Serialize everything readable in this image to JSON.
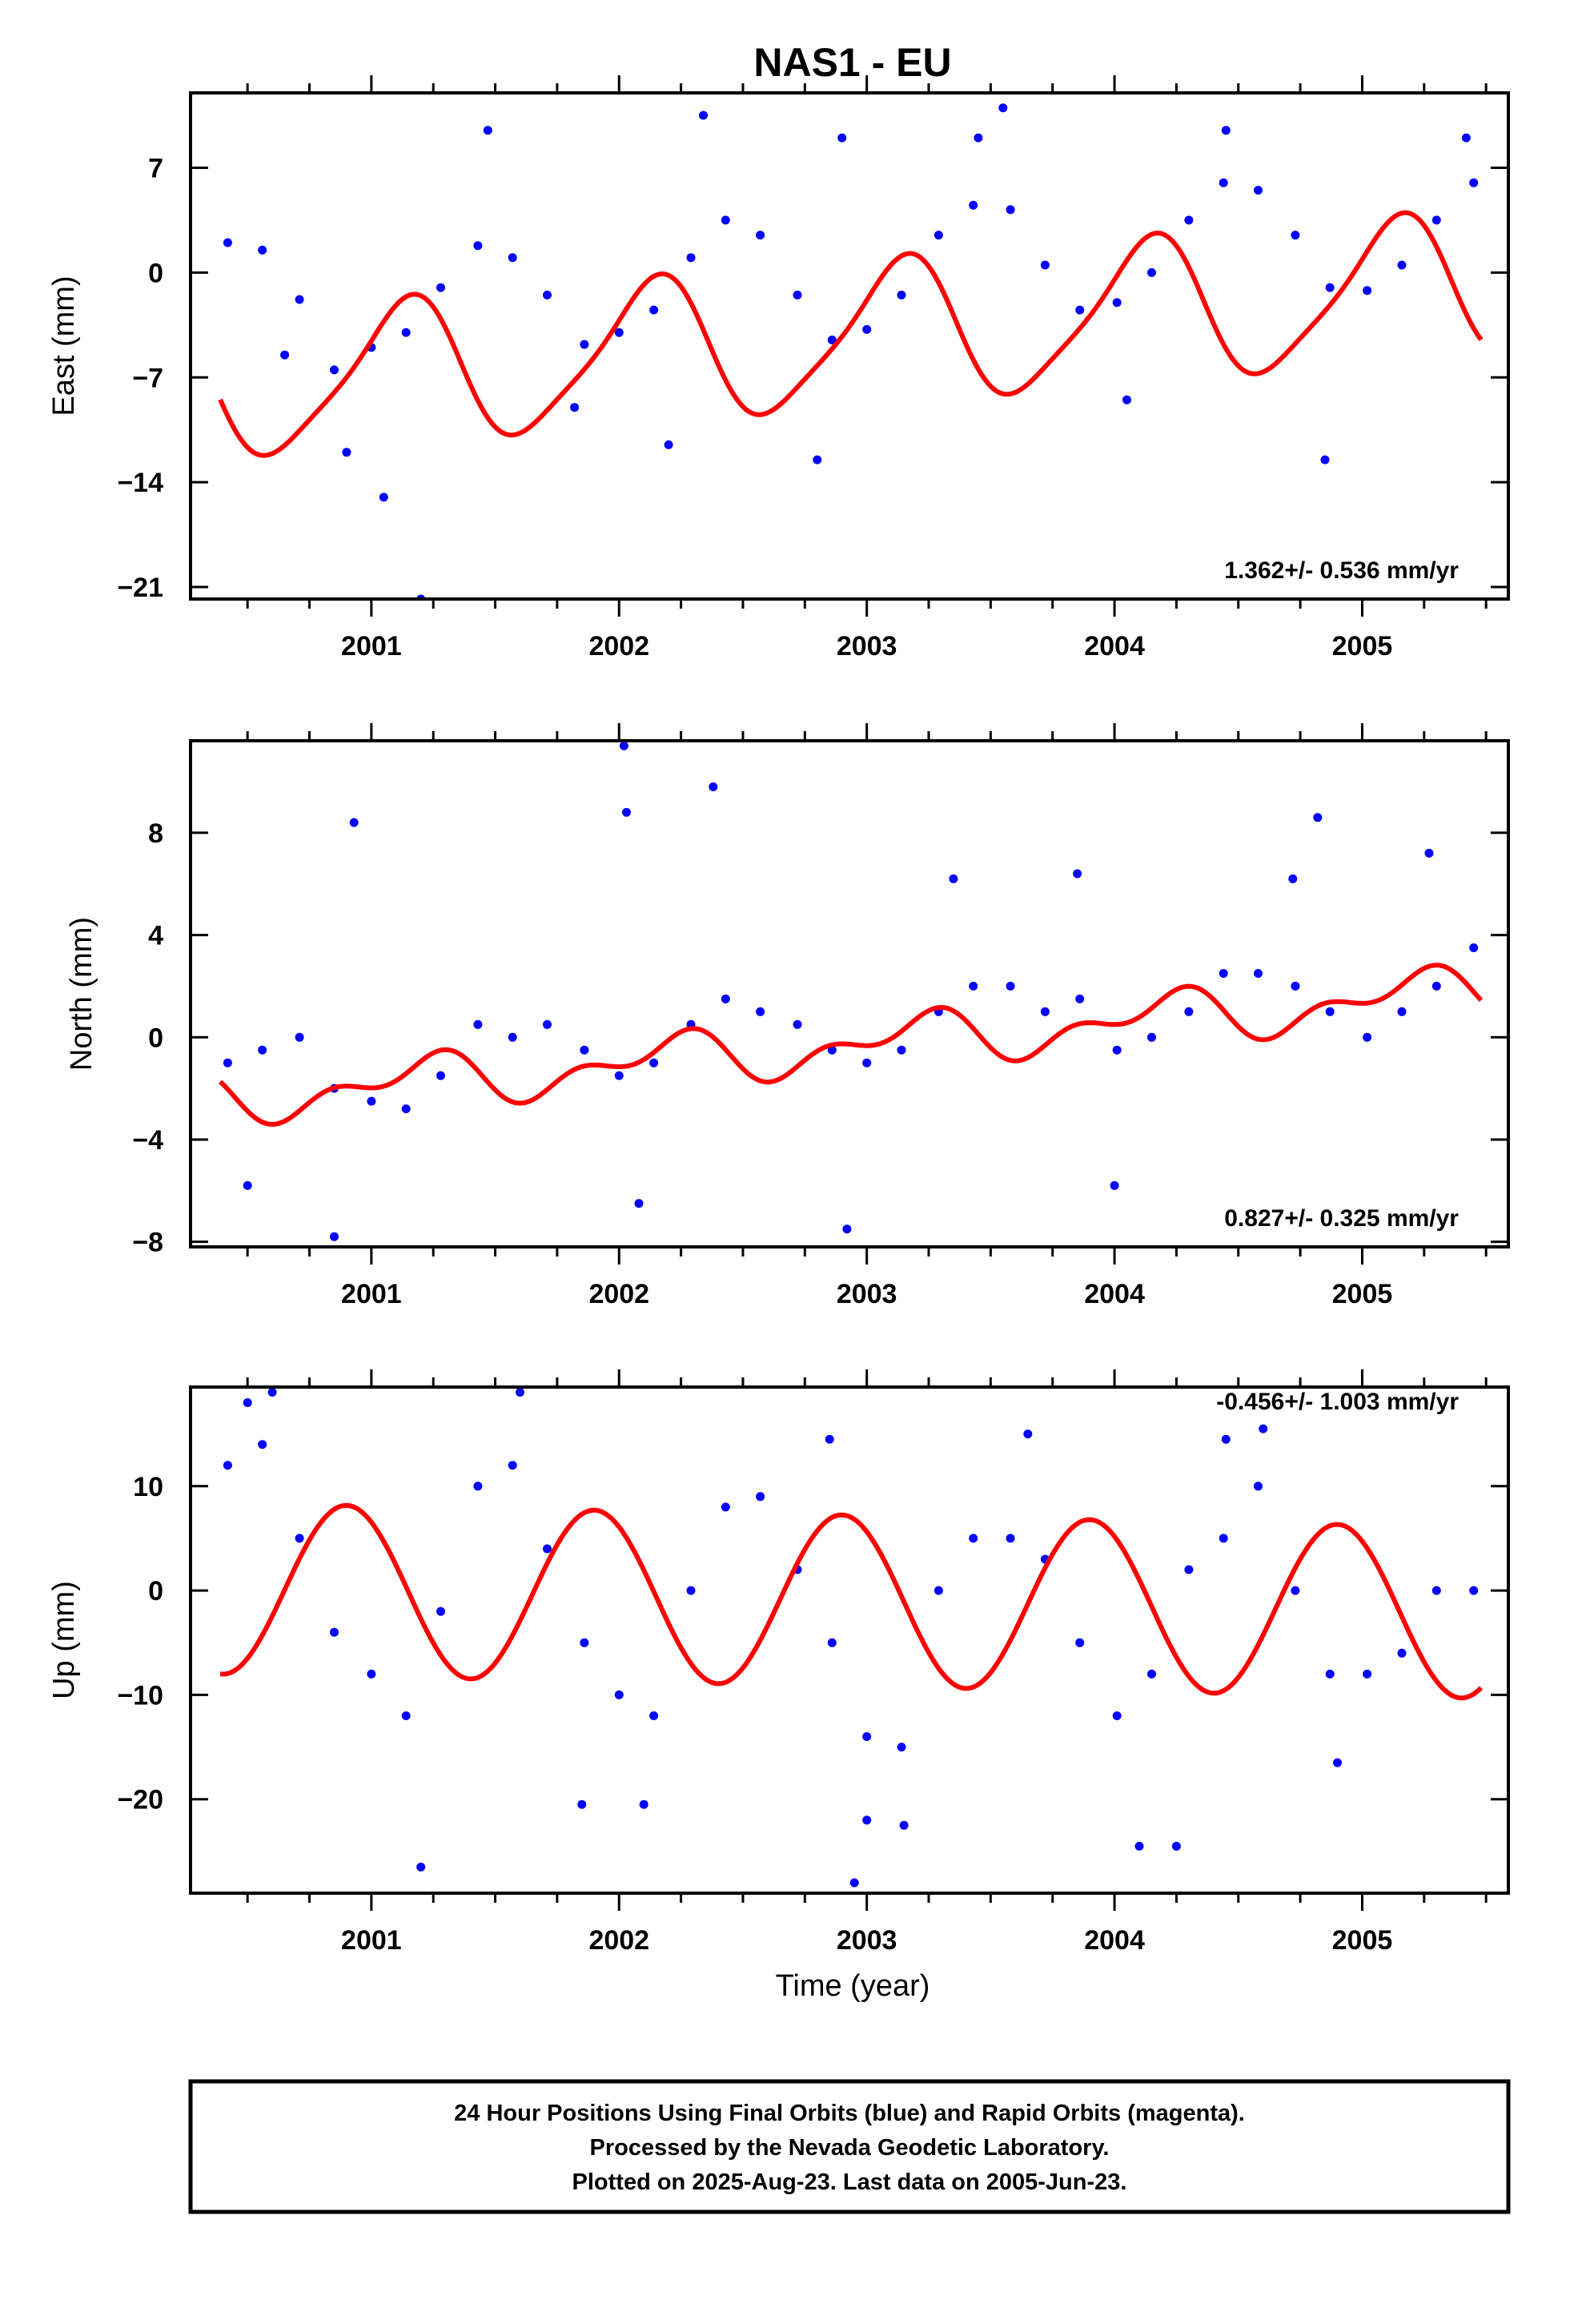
{
  "title": "NAS1 - EU",
  "xlabel": "Time (year)",
  "caption": [
    "24 Hour Positions Using Final Orbits (blue) and Rapid Orbits (magenta).",
    "Processed by the Nevada Geodetic Laboratory.",
    "Plotted on 2025-Aug-23. Last data on 2005-Jun-23."
  ],
  "colors": {
    "final_orbits": "#0000ff",
    "fit_curve": "#ff0000",
    "axes": "#000000"
  },
  "chart_data": [
    {
      "type": "scatter",
      "ylabel": "East (mm)",
      "rate_label": "1.362+/- 0.536 mm/yr",
      "xlim": [
        2000.27,
        2005.59
      ],
      "ylim": [
        -21.8,
        12.0
      ],
      "yticks": [
        7,
        0,
        -7,
        -14,
        -21
      ],
      "xticks": [
        2001,
        2002,
        2003,
        2004,
        2005
      ],
      "fit": {
        "slope": 1.362,
        "intercept": -4.2,
        "ref_year": 2003.0,
        "amp1": 4.7,
        "phase1": 0.12,
        "amp2": 0.9,
        "phase2": 0.8
      },
      "series": [
        {
          "values": [
            [
              2000.42,
              2.0
            ],
            [
              2000.56,
              1.5
            ],
            [
              2000.71,
              -1.8
            ],
            [
              2000.85,
              -6.5
            ],
            [
              2001.0,
              -5.0
            ],
            [
              2001.14,
              -4.0
            ],
            [
              2001.28,
              -1.0
            ],
            [
              2001.43,
              1.8
            ],
            [
              2001.57,
              1.0
            ],
            [
              2001.71,
              -1.5
            ],
            [
              2001.86,
              -4.8
            ],
            [
              2002.0,
              -4.0
            ],
            [
              2002.14,
              -2.5
            ],
            [
              2002.29,
              1.0
            ],
            [
              2002.43,
              3.5
            ],
            [
              2002.57,
              2.5
            ],
            [
              2002.72,
              -1.5
            ],
            [
              2002.86,
              -4.5
            ],
            [
              2003.0,
              -3.8
            ],
            [
              2003.14,
              -1.5
            ],
            [
              2003.29,
              2.5
            ],
            [
              2003.43,
              4.5
            ],
            [
              2003.58,
              4.2
            ],
            [
              2003.72,
              0.5
            ],
            [
              2003.86,
              -2.5
            ],
            [
              2004.01,
              -2.0
            ],
            [
              2004.15,
              0.0
            ],
            [
              2004.3,
              3.5
            ],
            [
              2004.44,
              6.0
            ],
            [
              2004.58,
              5.5
            ],
            [
              2004.73,
              2.5
            ],
            [
              2004.87,
              -1.0
            ],
            [
              2005.02,
              -1.2
            ],
            [
              2005.16,
              0.5
            ],
            [
              2005.3,
              3.5
            ],
            [
              2005.45,
              6.0
            ],
            [
              2000.65,
              -5.5
            ],
            [
              2000.9,
              -12.0
            ],
            [
              2001.05,
              -15.0
            ],
            [
              2001.2,
              -21.8
            ],
            [
              2001.47,
              9.5
            ],
            [
              2001.82,
              -9.0
            ],
            [
              2002.2,
              -11.5
            ],
            [
              2002.34,
              10.5
            ],
            [
              2002.8,
              -12.5
            ],
            [
              2002.9,
              9.0
            ],
            [
              2003.45,
              9.0
            ],
            [
              2003.55,
              11.0
            ],
            [
              2004.05,
              -8.5
            ],
            [
              2004.45,
              9.5
            ],
            [
              2004.85,
              -12.5
            ],
            [
              2005.42,
              9.0
            ]
          ]
        }
      ]
    },
    {
      "type": "scatter",
      "ylabel": "North (mm)",
      "rate_label": "0.827+/- 0.325 mm/yr",
      "xlim": [
        2000.27,
        2005.59
      ],
      "ylim": [
        -8.2,
        11.6
      ],
      "yticks": [
        8,
        4,
        0,
        -4,
        -8
      ],
      "xticks": [
        2001,
        2002,
        2003,
        2004,
        2005
      ],
      "fit": {
        "slope": 0.827,
        "intercept": -0.25,
        "ref_year": 2003.0,
        "amp1": 0.8,
        "phase1": 0.05,
        "amp2": 0.55,
        "phase2": 0.6
      },
      "series": [
        {
          "values": [
            [
              2000.42,
              -1.0
            ],
            [
              2000.56,
              -0.5
            ],
            [
              2000.71,
              0.0
            ],
            [
              2000.85,
              -2.0
            ],
            [
              2001.0,
              -2.5
            ],
            [
              2001.14,
              -2.8
            ],
            [
              2001.28,
              -1.5
            ],
            [
              2001.43,
              0.5
            ],
            [
              2001.57,
              0.0
            ],
            [
              2001.71,
              0.5
            ],
            [
              2001.86,
              -0.5
            ],
            [
              2002.0,
              -1.5
            ],
            [
              2002.14,
              -1.0
            ],
            [
              2002.29,
              0.5
            ],
            [
              2002.43,
              1.5
            ],
            [
              2002.57,
              1.0
            ],
            [
              2002.72,
              0.5
            ],
            [
              2002.86,
              -0.5
            ],
            [
              2003.0,
              -1.0
            ],
            [
              2003.14,
              -0.5
            ],
            [
              2003.29,
              1.0
            ],
            [
              2003.43,
              2.0
            ],
            [
              2003.58,
              2.0
            ],
            [
              2003.72,
              1.0
            ],
            [
              2003.86,
              1.5
            ],
            [
              2004.01,
              -0.5
            ],
            [
              2004.15,
              0.0
            ],
            [
              2004.3,
              1.0
            ],
            [
              2004.44,
              2.5
            ],
            [
              2004.58,
              2.5
            ],
            [
              2004.73,
              2.0
            ],
            [
              2004.87,
              1.0
            ],
            [
              2005.02,
              0.0
            ],
            [
              2005.16,
              1.0
            ],
            [
              2005.3,
              2.0
            ],
            [
              2005.45,
              3.5
            ],
            [
              2000.5,
              -5.8
            ],
            [
              2000.85,
              -7.8
            ],
            [
              2000.93,
              8.4
            ],
            [
              2002.02,
              11.4
            ],
            [
              2002.03,
              8.8
            ],
            [
              2002.08,
              -6.5
            ],
            [
              2002.38,
              9.8
            ],
            [
              2002.92,
              -7.5
            ],
            [
              2003.35,
              6.2
            ],
            [
              2003.85,
              6.4
            ],
            [
              2004.0,
              -5.8
            ],
            [
              2004.82,
              8.6
            ],
            [
              2005.27,
              7.2
            ],
            [
              2004.72,
              6.2
            ]
          ]
        }
      ]
    },
    {
      "type": "scatter",
      "ylabel": "Up (mm)",
      "rate_label": "-0.456+/- 1.003 mm/yr",
      "xlim": [
        2000.27,
        2005.59
      ],
      "ylim": [
        -29.0,
        19.5
      ],
      "yticks": [
        10,
        0,
        -10,
        -20
      ],
      "xticks": [
        2001,
        2002,
        2003,
        2004,
        2005
      ],
      "fit": {
        "slope": -0.456,
        "intercept": -1.0,
        "ref_year": 2003.0,
        "amp1": 8.2,
        "phase1": 0.35,
        "amp2": 0.0,
        "phase2": 0.0
      },
      "series": [
        {
          "values": [
            [
              2000.42,
              12.0
            ],
            [
              2000.56,
              14.0
            ],
            [
              2000.71,
              5.0
            ],
            [
              2000.85,
              -4.0
            ],
            [
              2001.0,
              -8.0
            ],
            [
              2001.14,
              -12.0
            ],
            [
              2001.28,
              -2.0
            ],
            [
              2001.43,
              10.0
            ],
            [
              2001.57,
              12.0
            ],
            [
              2001.71,
              4.0
            ],
            [
              2001.86,
              -5.0
            ],
            [
              2002.0,
              -10.0
            ],
            [
              2002.14,
              -12.0
            ],
            [
              2002.29,
              0.0
            ],
            [
              2002.43,
              8.0
            ],
            [
              2002.57,
              9.0
            ],
            [
              2002.72,
              2.0
            ],
            [
              2002.86,
              -5.0
            ],
            [
              2003.0,
              -14.0
            ],
            [
              2003.14,
              -15.0
            ],
            [
              2003.29,
              0.0
            ],
            [
              2003.43,
              5.0
            ],
            [
              2003.58,
              5.0
            ],
            [
              2003.72,
              3.0
            ],
            [
              2003.86,
              -5.0
            ],
            [
              2004.01,
              -12.0
            ],
            [
              2004.15,
              -8.0
            ],
            [
              2004.3,
              2.0
            ],
            [
              2004.44,
              5.0
            ],
            [
              2004.58,
              10.0
            ],
            [
              2004.73,
              0.0
            ],
            [
              2004.87,
              -8.0
            ],
            [
              2005.02,
              -8.0
            ],
            [
              2005.16,
              -6.0
            ],
            [
              2005.3,
              0.0
            ],
            [
              2005.45,
              0.0
            ],
            [
              2000.5,
              18.0
            ],
            [
              2000.6,
              19.0
            ],
            [
              2001.2,
              -26.5
            ],
            [
              2001.6,
              19.0
            ],
            [
              2001.85,
              -20.5
            ],
            [
              2002.1,
              -20.5
            ],
            [
              2002.95,
              -28.0
            ],
            [
              2003.0,
              -22.0
            ],
            [
              2003.15,
              -22.5
            ],
            [
              2003.65,
              15.0
            ],
            [
              2004.1,
              -24.5
            ],
            [
              2004.25,
              -24.5
            ],
            [
              2004.6,
              15.5
            ],
            [
              2004.9,
              -16.5
            ],
            [
              2002.85,
              14.5
            ],
            [
              2004.45,
              14.5
            ]
          ]
        }
      ]
    }
  ]
}
